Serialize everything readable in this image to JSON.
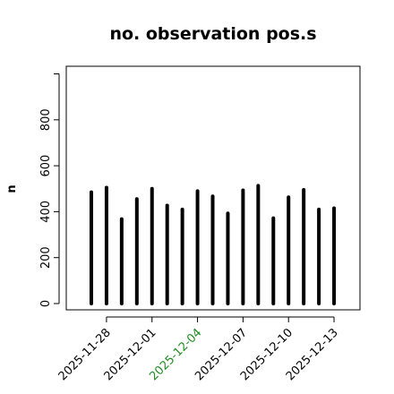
{
  "chart_data": {
    "type": "bar",
    "title": "no. observation pos.s",
    "ylabel": "n",
    "xlabel": "",
    "ylim": [
      0,
      1000
    ],
    "yticks": [
      0,
      200,
      400,
      600,
      800
    ],
    "dates": [
      "2025-11-27",
      "2025-11-28",
      "2025-11-29",
      "2025-11-30",
      "2025-12-01",
      "2025-12-02",
      "2025-12-03",
      "2025-12-04",
      "2025-12-05",
      "2025-12-06",
      "2025-12-07",
      "2025-12-08",
      "2025-12-09",
      "2025-12-10",
      "2025-12-11",
      "2025-12-12",
      "2025-12-13"
    ],
    "values": [
      485,
      505,
      368,
      455,
      500,
      427,
      410,
      490,
      467,
      393,
      493,
      513,
      372,
      463,
      495,
      410,
      415
    ],
    "xticks": [
      {
        "date": "2025-11-28",
        "label": "2025-11-28",
        "color": "#000000"
      },
      {
        "date": "2025-12-01",
        "label": "2025-12-01",
        "color": "#000000"
      },
      {
        "date": "2025-12-04",
        "label": "2025-12-04",
        "color": "#228B22"
      },
      {
        "date": "2025-12-07",
        "label": "2025-12-07",
        "color": "#000000"
      },
      {
        "date": "2025-12-10",
        "label": "2025-12-10",
        "color": "#000000"
      },
      {
        "date": "2025-12-13",
        "label": "2025-12-13",
        "color": "#000000"
      }
    ],
    "bar_color": "#000000",
    "grid": false,
    "legend": "none"
  }
}
